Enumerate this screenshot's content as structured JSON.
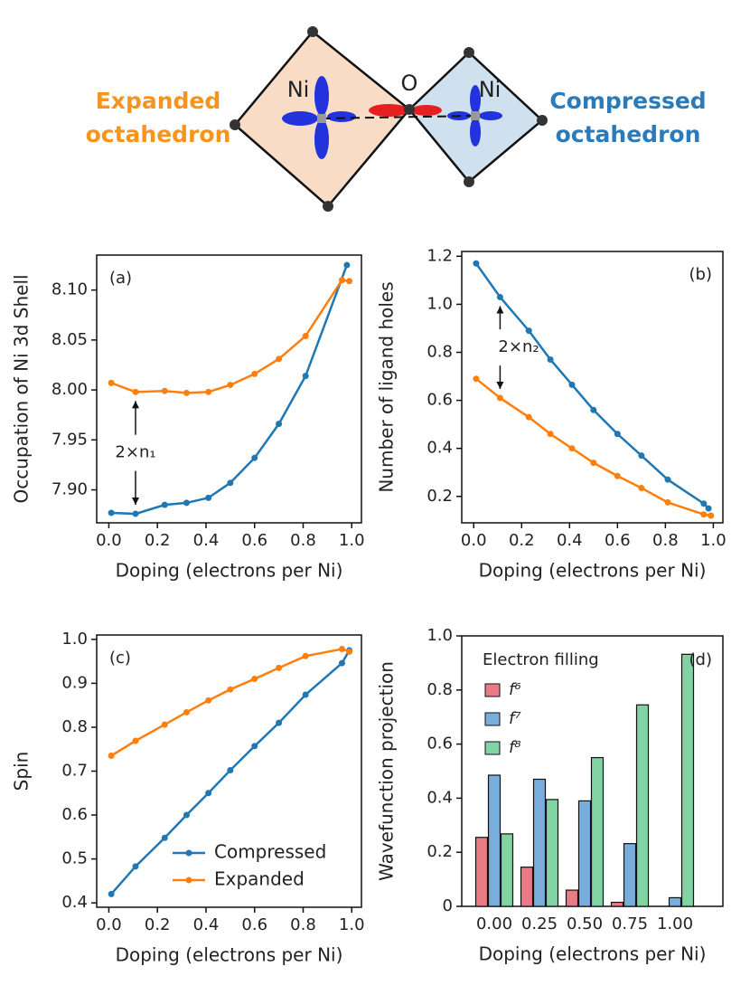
{
  "diagram": {
    "ni_left": "Ni",
    "o": "O",
    "ni_right": "Ni",
    "expanded": [
      "Expanded",
      "octahedron"
    ],
    "compressed": [
      "Compressed",
      "octahedron"
    ]
  },
  "chart_data": [
    {
      "type": "line",
      "panel_label": "(a)",
      "xlabel": "Doping (electrons per Ni)",
      "ylabel": "Occupation of Ni 3d Shell",
      "annotation": "2×n₁",
      "xlim": [
        -0.05,
        1.04
      ],
      "ylim": [
        7.867,
        8.135
      ],
      "xticks": [
        {
          "value": 0,
          "label": "0.0"
        },
        0.2,
        0.4,
        0.6,
        0.8,
        {
          "value": 1,
          "label": "1.0"
        }
      ],
      "yticks": [
        {
          "value": 7.9,
          "label": "7.90"
        },
        7.95,
        {
          "value": 8,
          "label": "8.00"
        },
        8.05,
        {
          "value": 8.1,
          "label": "8.10"
        }
      ],
      "series": [
        {
          "name": "Compressed",
          "color": "#1f77b4",
          "x": [
            0.01,
            0.11,
            0.23,
            0.32,
            0.41,
            0.5,
            0.6,
            0.7,
            0.81,
            0.98
          ],
          "values": [
            7.877,
            7.876,
            7.885,
            7.887,
            7.892,
            7.907,
            7.932,
            7.966,
            8.014,
            8.125
          ]
        },
        {
          "name": "Expanded",
          "color": "#ff7f0e",
          "x": [
            0.01,
            0.11,
            0.23,
            0.32,
            0.41,
            0.5,
            0.6,
            0.7,
            0.81,
            0.96,
            0.99
          ],
          "values": [
            8.007,
            7.998,
            7.999,
            7.997,
            7.998,
            8.005,
            8.016,
            8.031,
            8.054,
            8.11,
            8.109
          ]
        }
      ]
    },
    {
      "type": "line",
      "panel_label": "(b)",
      "xlabel": "Doping (electrons per Ni)",
      "ylabel": "Number of ligand holes",
      "annotation": "2×n₂",
      "xlim": [
        -0.05,
        1.04
      ],
      "ylim": [
        0.09,
        1.22
      ],
      "xticks": [
        {
          "value": 0,
          "label": "0.0"
        },
        0.2,
        0.4,
        0.6,
        0.8,
        {
          "value": 1,
          "label": "1.0"
        }
      ],
      "yticks": [
        0.2,
        0.4,
        0.6,
        0.8,
        {
          "value": 1,
          "label": "1.0"
        },
        1.2
      ],
      "series": [
        {
          "name": "Compressed",
          "color": "#1f77b4",
          "x": [
            0.01,
            0.11,
            0.23,
            0.32,
            0.41,
            0.5,
            0.6,
            0.7,
            0.81,
            0.96,
            0.98
          ],
          "values": [
            1.17,
            1.03,
            0.89,
            0.77,
            0.665,
            0.56,
            0.46,
            0.37,
            0.27,
            0.17,
            0.15
          ]
        },
        {
          "name": "Expanded",
          "color": "#ff7f0e",
          "x": [
            0.01,
            0.11,
            0.23,
            0.32,
            0.41,
            0.5,
            0.6,
            0.7,
            0.81,
            0.96,
            0.99
          ],
          "values": [
            0.69,
            0.61,
            0.53,
            0.46,
            0.4,
            0.34,
            0.285,
            0.235,
            0.175,
            0.125,
            0.12
          ]
        }
      ]
    },
    {
      "type": "line",
      "panel_label": "(c)",
      "xlabel": "Doping (electrons per Ni)",
      "ylabel": "Spin",
      "legend": "lower right",
      "xlim": [
        -0.05,
        1.04
      ],
      "ylim": [
        0.39,
        1.01
      ],
      "xticks": [
        {
          "value": 0,
          "label": "0.0"
        },
        0.2,
        0.4,
        0.6,
        0.8,
        {
          "value": 1,
          "label": "1.0"
        }
      ],
      "yticks": [
        0.4,
        0.5,
        0.6,
        0.7,
        0.8,
        0.9,
        {
          "value": 1,
          "label": "1.0"
        }
      ],
      "series": [
        {
          "name": "Compressed",
          "color": "#1f77b4",
          "x": [
            0.01,
            0.11,
            0.23,
            0.32,
            0.41,
            0.5,
            0.6,
            0.7,
            0.81,
            0.96,
            0.99
          ],
          "values": [
            0.42,
            0.483,
            0.548,
            0.6,
            0.65,
            0.702,
            0.757,
            0.81,
            0.874,
            0.946,
            0.975
          ]
        },
        {
          "name": "Expanded",
          "color": "#ff7f0e",
          "x": [
            0.01,
            0.11,
            0.23,
            0.32,
            0.41,
            0.5,
            0.6,
            0.7,
            0.81,
            0.96,
            0.99
          ],
          "values": [
            0.735,
            0.769,
            0.806,
            0.834,
            0.861,
            0.886,
            0.91,
            0.935,
            0.962,
            0.978,
            0.972
          ]
        }
      ]
    },
    {
      "type": "bar",
      "panel_label": "(d)",
      "xlabel": "Doping (electrons per Ni)",
      "ylabel": "Wavefunction projection",
      "legend_title": "Electron filling",
      "legend": "upper left",
      "categories": [
        "0.00",
        "0.25",
        "0.50",
        "0.75",
        "1.00"
      ],
      "ylim": [
        0,
        1
      ],
      "yticks": [
        0,
        0.2,
        0.4,
        0.6,
        0.8,
        {
          "value": 1,
          "label": "1.0"
        }
      ],
      "series": [
        {
          "name": "f⁶",
          "color": "#e87b85",
          "values": [
            0.255,
            0.145,
            0.06,
            0.015,
            0.0
          ]
        },
        {
          "name": "f⁷",
          "color": "#79aedc",
          "values": [
            0.485,
            0.47,
            0.39,
            0.232,
            0.032
          ]
        },
        {
          "name": "f⁸",
          "color": "#82d2a3",
          "values": [
            0.268,
            0.395,
            0.55,
            0.745,
            0.932
          ]
        }
      ]
    }
  ]
}
